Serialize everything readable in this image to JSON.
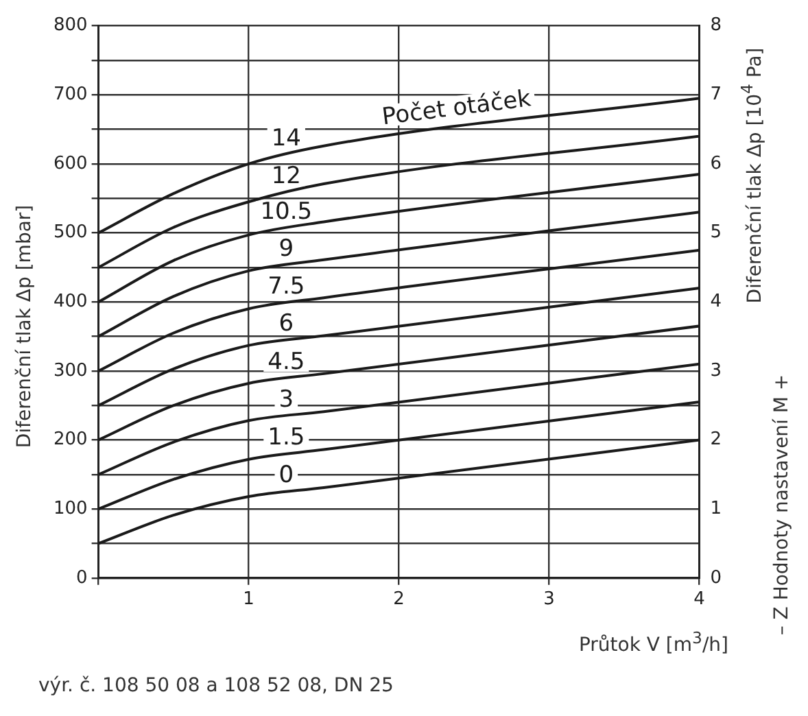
{
  "chart_data": {
    "type": "line",
    "xlabel": "Průtok V [m$^{3}$/h]",
    "ylabel": "Diferenční tlak Δp [mbar]",
    "y2label": "Diferenční tlak Δp [10$^{4}$ Pa]",
    "x": [
      0,
      0.5,
      1,
      1.5,
      4
    ],
    "series": [
      {
        "name": "0",
        "color": "#1a1a1a",
        "values": [
          50,
          91,
          118,
          131,
          200
        ]
      },
      {
        "name": "1.5",
        "color": "#1a1a1a",
        "values": [
          100,
          143,
          172,
          186,
          255
        ]
      },
      {
        "name": "3",
        "color": "#1a1a1a",
        "values": [
          150,
          197,
          228,
          241,
          310
        ]
      },
      {
        "name": "4.5",
        "color": "#1a1a1a",
        "values": [
          200,
          250,
          282,
          296,
          365
        ]
      },
      {
        "name": "6",
        "color": "#1a1a1a",
        "values": [
          250,
          303,
          337,
          351,
          420
        ]
      },
      {
        "name": "7.5",
        "color": "#1a1a1a",
        "values": [
          300,
          355,
          390,
          406,
          475
        ]
      },
      {
        "name": "9",
        "color": "#1a1a1a",
        "values": [
          350,
          408,
          445,
          461,
          530
        ]
      },
      {
        "name": "10.5",
        "color": "#1a1a1a",
        "values": [
          400,
          460,
          497,
          516,
          585
        ]
      },
      {
        "name": "12",
        "color": "#1a1a1a",
        "values": [
          450,
          508,
          545,
          571,
          640
        ]
      },
      {
        "name": "14",
        "color": "#1a1a1a",
        "values": [
          500,
          557,
          600,
          626,
          695
        ]
      }
    ],
    "xlim": [
      0,
      4
    ],
    "xticks": [
      {
        "value": 0,
        "label": null
      },
      1,
      2,
      3,
      4
    ],
    "ylim": [
      0,
      800
    ],
    "yticks": [
      0,
      {
        "value": 50,
        "label": null
      },
      100,
      {
        "value": 150,
        "label": null
      },
      200,
      {
        "value": 250,
        "label": null
      },
      300,
      {
        "value": 350,
        "label": null
      },
      400,
      {
        "value": 450,
        "label": null
      },
      500,
      {
        "value": 550,
        "label": null
      },
      600,
      {
        "value": 650,
        "label": null
      },
      700,
      {
        "value": 750,
        "label": null
      },
      800
    ],
    "y2lim": [
      0,
      8
    ],
    "y2ticks": [
      0,
      1,
      2,
      3,
      4,
      5,
      6,
      7,
      8
    ],
    "grid": true,
    "legend": false,
    "marker": "none",
    "line_style": "solid",
    "annotations": [
      "Počet otáček",
      "– Z Hodnoty nastavení M +",
      "výr. č. 108 50 08 a 108 52 08, DN 25"
    ]
  }
}
